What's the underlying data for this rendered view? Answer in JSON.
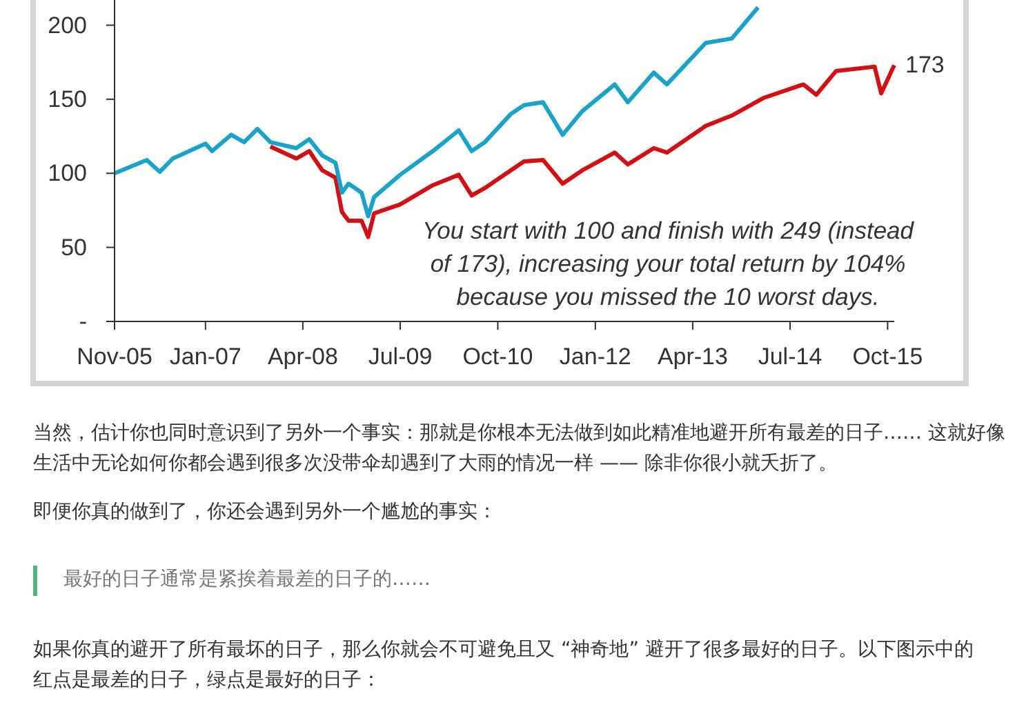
{
  "chart_data": {
    "type": "line",
    "series": [
      {
        "color": "#d40f14",
        "x": [
          "2007-11",
          "2008-03",
          "2008-05",
          "2008-07",
          "2008-09",
          "2008-10",
          "2008-11",
          "2009-01",
          "2009-02",
          "2009-03",
          "2009-07",
          "2009-12",
          "2010-04",
          "2010-06",
          "2010-08",
          "2010-12",
          "2011-02",
          "2011-05",
          "2011-08",
          "2011-11",
          "2012-04",
          "2012-06",
          "2012-10",
          "2012-12",
          "2013-06",
          "2013-10",
          "2014-03",
          "2014-09",
          "2014-11",
          "2015-02",
          "2015-08",
          "2015-09",
          "2015-11"
        ],
        "values": [
          118,
          110,
          115,
          102,
          97,
          74,
          68,
          68,
          57,
          73,
          79,
          92,
          99,
          85,
          90,
          102,
          108,
          109,
          93,
          102,
          114,
          106,
          117,
          114,
          132,
          139,
          151,
          160,
          153,
          169,
          172,
          154,
          173
        ]
      },
      {
        "color": "#1aa3c8",
        "x": [
          "2005-11",
          "2006-04",
          "2006-06",
          "2006-08",
          "2007-01",
          "2007-02",
          "2007-05",
          "2007-07",
          "2007-09",
          "2007-11",
          "2008-03",
          "2008-05",
          "2008-07",
          "2008-09",
          "2008-10",
          "2008-11",
          "2009-01",
          "2009-02",
          "2009-03",
          "2009-07",
          "2009-12",
          "2010-04",
          "2010-06",
          "2010-08",
          "2010-12",
          "2011-02",
          "2011-05",
          "2011-08",
          "2011-11",
          "2012-04",
          "2012-06",
          "2012-10",
          "2012-12",
          "2013-06",
          "2013-10",
          "2014-02"
        ],
        "values": [
          100,
          109,
          101,
          110,
          120,
          115,
          126,
          121,
          130,
          121,
          117,
          123,
          112,
          107,
          87,
          93,
          87,
          71,
          84,
          99,
          115,
          129,
          115,
          121,
          140,
          146,
          148,
          126,
          142,
          160,
          148,
          168,
          160,
          188,
          191,
          212
        ]
      }
    ],
    "xlim": [
      "2005-11",
      "2015-11"
    ],
    "xticks": [
      {
        "value": "2005-11",
        "label": "Nov-05"
      },
      {
        "value": "2007-01",
        "label": "Jan-07"
      },
      {
        "value": "2008-04",
        "label": "Apr-08"
      },
      {
        "value": "2009-07",
        "label": "Jul-09"
      },
      {
        "value": "2010-10",
        "label": "Oct-10"
      },
      {
        "value": "2012-01",
        "label": "Jan-12"
      },
      {
        "value": "2013-04",
        "label": "Apr-13"
      },
      {
        "value": "2014-07",
        "label": "Jul-14"
      },
      {
        "value": "2015-10",
        "label": "Oct-15"
      }
    ],
    "ylim": [
      0,
      217
    ],
    "yticks": [
      {
        "value": 0,
        "label": "-"
      },
      50,
      100,
      150,
      200
    ],
    "grid": false,
    "annotations": [
      "You start with 100 and finish with 249 (instead of 173), increasing your total return by 104% because you missed the 10 worst days.",
      {
        "text": "173",
        "x": "2015-11",
        "y": 173
      },
      "当然，估计你也同时意识到了另外一个事实：那就是你根本无法做到如此精准地避开所有最差的日子…… 这就好像生活中无论如何你都会遇到很多次没带伞却遇到了大雨的情况一样 —— 除非你很小就夭折了。",
      "即便你真的做到了，你还会遇到另外一个尴尬的事实：",
      "最好的日子通常是紧挨着最差的日子的……",
      "如果你真的避开了所有最坏的日子，那么你就会不可避免且又 “神奇地” 避开了很多最好的日子。以下图示中的红点是最差的日子，绿点是最好的日子："
    ]
  }
}
